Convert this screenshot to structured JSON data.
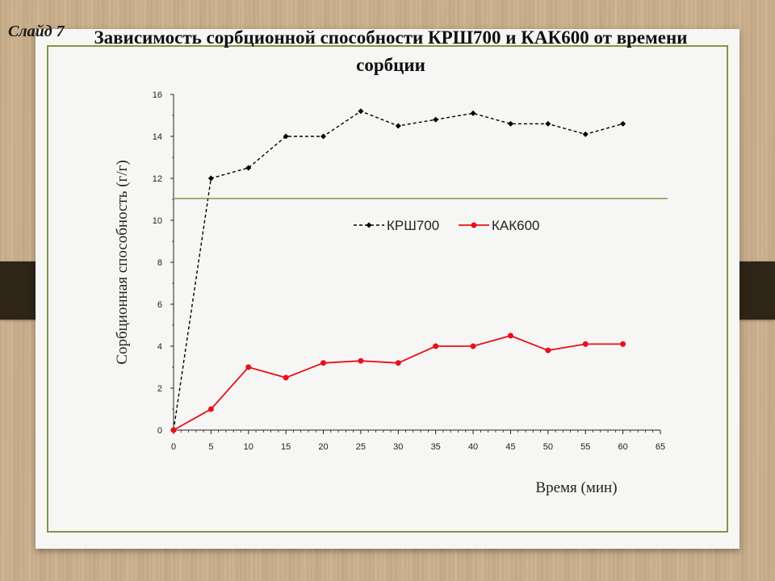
{
  "slide": {
    "label": "Слайд 7",
    "title": "Зависимость сорбционной способности КРШ700 и КАК600 от времени сорбции"
  },
  "colors": {
    "frame": "#7f9845",
    "series_black": "#000000",
    "series_red": "#e8101a"
  },
  "chart_data": {
    "type": "line",
    "xlabel": "Время (мин)",
    "ylabel": "Сорбционная способность (г/г)",
    "xlim": [
      0,
      65
    ],
    "ylim": [
      0,
      16
    ],
    "x_ticks": [
      "0",
      "5",
      "10",
      "15",
      "20",
      "25",
      "30",
      "35",
      "40",
      "45",
      "50",
      "55",
      "60",
      "65"
    ],
    "y_ticks": [
      "0",
      "2",
      "4",
      "6",
      "8",
      "10",
      "12",
      "14",
      "16"
    ],
    "x": [
      0,
      5,
      10,
      15,
      20,
      25,
      30,
      35,
      40,
      45,
      50,
      55,
      60
    ],
    "legend_position": "center",
    "series": [
      {
        "name": "КРШ700",
        "style": "dashed",
        "marker": "diamond",
        "color": "#000000",
        "values": [
          0,
          12.0,
          12.5,
          14.0,
          14.0,
          15.2,
          14.5,
          14.8,
          15.1,
          14.6,
          14.6,
          14.1,
          14.6
        ]
      },
      {
        "name": "КАК600",
        "style": "solid",
        "marker": "circle",
        "color": "#e8101a",
        "values": [
          0,
          1.0,
          3.0,
          2.5,
          3.2,
          3.3,
          3.2,
          4.0,
          4.0,
          4.5,
          3.8,
          4.1,
          4.1
        ]
      }
    ]
  }
}
